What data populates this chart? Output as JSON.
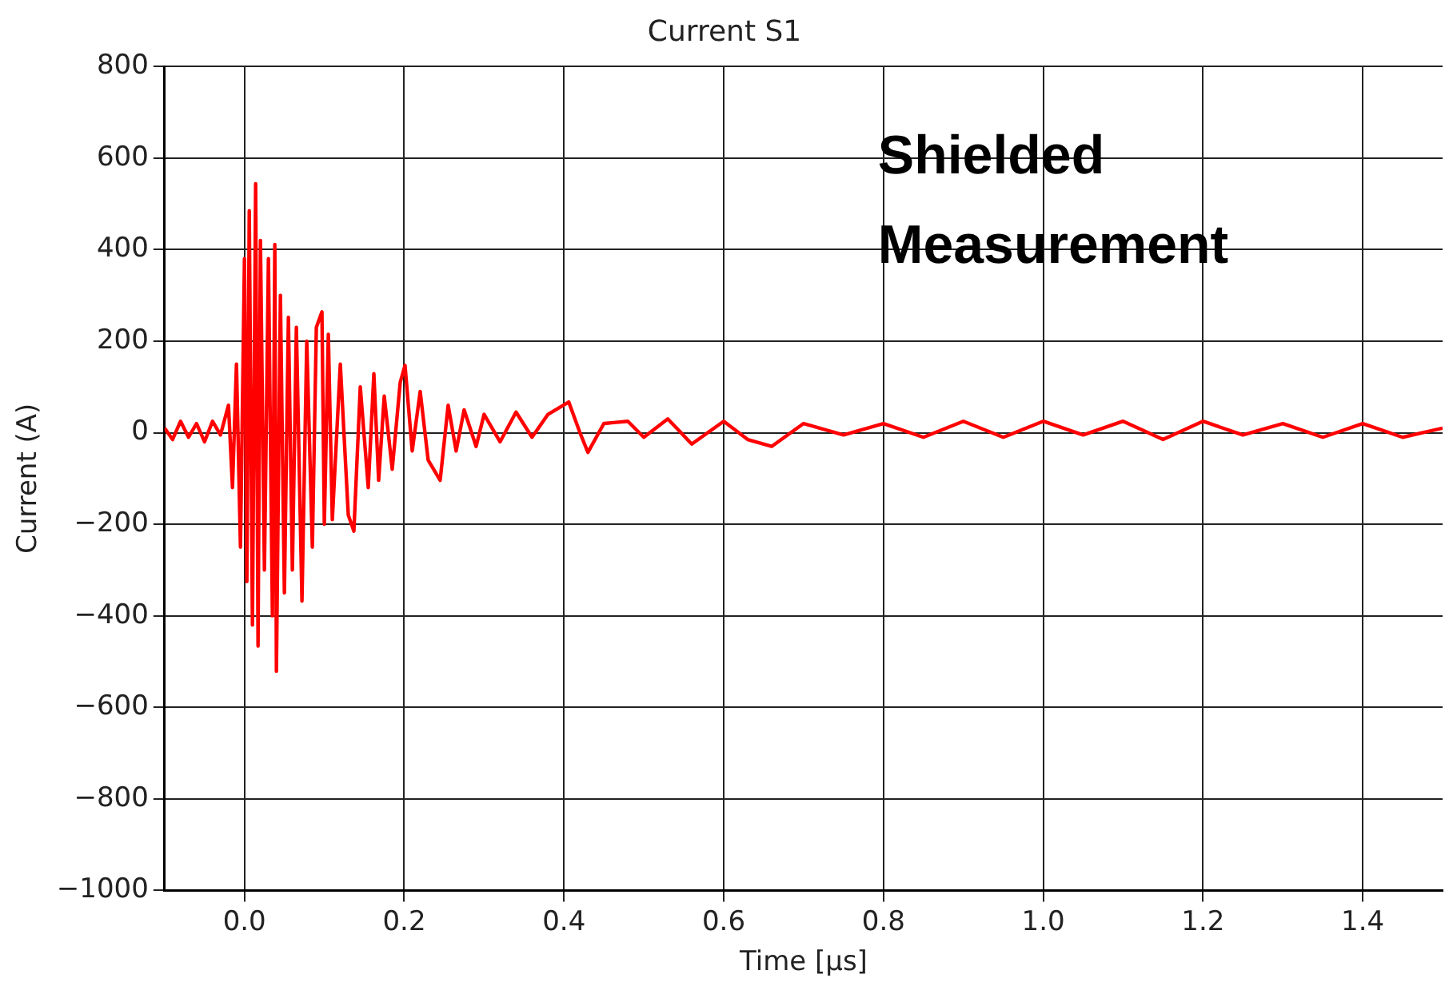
{
  "chart_data": {
    "type": "line",
    "title": "Current S1",
    "xlabel": "Time [μs]",
    "ylabel": "Current (A)",
    "annotations": [
      "Shielded Measurement"
    ],
    "xlim": [
      -0.1,
      1.5
    ],
    "ylim": [
      -1000,
      800
    ],
    "xticks": [
      {
        "value": 0,
        "label": "0.0"
      },
      0.2,
      0.4,
      0.6,
      0.8,
      {
        "value": 1,
        "label": "1.0"
      },
      1.2,
      1.4
    ],
    "yticks": [
      {
        "value": -1000,
        "label": "−1000"
      },
      {
        "value": -800,
        "label": "−800"
      },
      {
        "value": -600,
        "label": "−600"
      },
      {
        "value": -400,
        "label": "−400"
      },
      {
        "value": -200,
        "label": "−200"
      },
      0,
      200,
      400,
      600,
      800
    ],
    "grid": true,
    "legend": false,
    "marker": "none",
    "line_style": "solid",
    "series": [
      {
        "color": "#ff0000",
        "x": [
          -0.1,
          -0.09,
          -0.08,
          -0.07,
          -0.06,
          -0.05,
          -0.04,
          -0.03,
          -0.02,
          -0.015,
          -0.01,
          -0.005,
          0,
          0.003,
          0.006,
          0.01,
          0.014,
          0.017,
          0.02,
          0.025,
          0.03,
          0.035,
          0.038,
          0.04,
          0.045,
          0.05,
          0.055,
          0.06,
          0.065,
          0.072,
          0.078,
          0.085,
          0.09,
          0.097,
          0.1,
          0.105,
          0.11,
          0.12,
          0.13,
          0.137,
          0.145,
          0.155,
          0.162,
          0.168,
          0.175,
          0.185,
          0.195,
          0.201,
          0.21,
          0.22,
          0.23,
          0.245,
          0.255,
          0.265,
          0.275,
          0.29,
          0.3,
          0.32,
          0.34,
          0.36,
          0.38,
          0.406,
          0.42,
          0.43,
          0.45,
          0.48,
          0.5,
          0.53,
          0.56,
          0.6,
          0.63,
          0.66,
          0.7,
          0.75,
          0.8,
          0.85,
          0.9,
          0.95,
          1,
          1.05,
          1.1,
          1.15,
          1.2,
          1.25,
          1.3,
          1.35,
          1.4,
          1.45,
          1.5
        ],
        "values": [
          10,
          -15,
          25,
          -10,
          20,
          -20,
          25,
          -5,
          60,
          -120,
          150,
          -250,
          380,
          -325,
          485,
          -420,
          544,
          -466,
          420,
          -300,
          380,
          -400,
          411,
          -521,
          300,
          -350,
          252,
          -300,
          230,
          -368,
          200,
          -250,
          230,
          264,
          -200,
          215,
          -190,
          150,
          -180,
          -215,
          100,
          -120,
          129,
          -104,
          80,
          -80,
          110,
          147,
          -40,
          90,
          -60,
          -104,
          60,
          -40,
          50,
          -30,
          40,
          -20,
          45,
          -10,
          40,
          67,
          0,
          -43,
          20,
          25,
          -10,
          30,
          -25,
          25,
          -15,
          -30,
          20,
          -5,
          20,
          -10,
          25,
          -10,
          25,
          -5,
          25,
          -15,
          25,
          -5,
          20,
          -10,
          20,
          -10,
          10
        ]
      }
    ]
  }
}
